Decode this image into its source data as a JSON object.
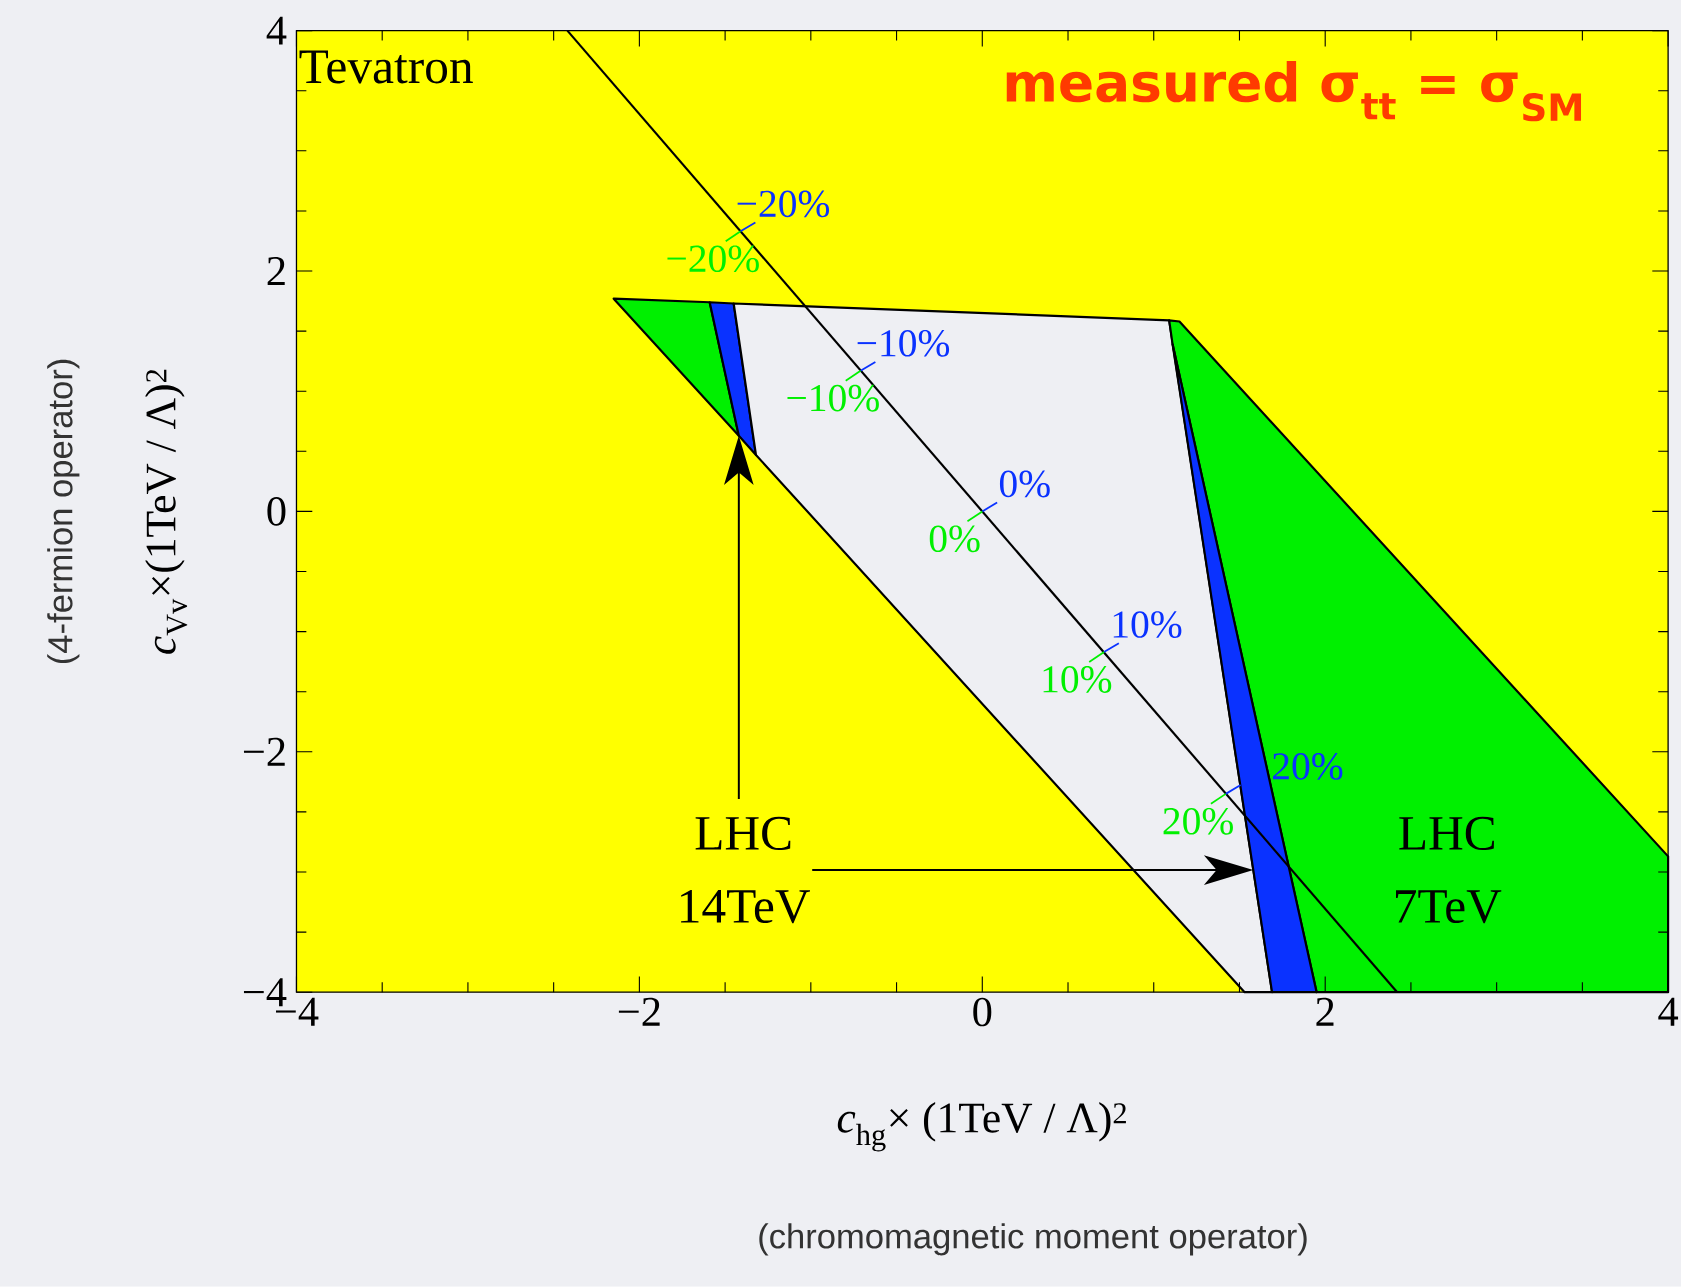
{
  "chart_data": {
    "type": "area",
    "title": "measured σ$_{tt}$ = σ$_{SM}$",
    "xlabel": "*c*$_{hg}$× (1TeV / Λ)$^{2}$",
    "ylabel": "*c*$_{Vv}$×(1TeV / Λ)$^{2}$",
    "xlim": [
      -4,
      4
    ],
    "ylim": [
      -4,
      4
    ],
    "xticks": [
      {
        "value": -4,
        "label": "−4"
      },
      {
        "value": -3.5,
        "label": null
      },
      {
        "value": -3,
        "label": null
      },
      {
        "value": -2.5,
        "label": null
      },
      {
        "value": -2,
        "label": "−2"
      },
      {
        "value": -1.5,
        "label": null
      },
      {
        "value": -1,
        "label": null
      },
      {
        "value": -0.5,
        "label": null
      },
      0,
      {
        "value": 0.5,
        "label": null
      },
      {
        "value": 1,
        "label": null
      },
      {
        "value": 1.5,
        "label": null
      },
      2,
      {
        "value": 2.5,
        "label": null
      },
      {
        "value": 3,
        "label": null
      },
      {
        "value": 3.5,
        "label": null
      },
      4
    ],
    "yticks": [
      {
        "value": -4,
        "label": "−4"
      },
      {
        "value": -3.5,
        "label": null
      },
      {
        "value": -3,
        "label": null
      },
      {
        "value": -2.5,
        "label": null
      },
      {
        "value": -2,
        "label": "−2"
      },
      {
        "value": -1.5,
        "label": null
      },
      {
        "value": -1,
        "label": null
      },
      {
        "value": -0.5,
        "label": null
      },
      0,
      {
        "value": 0.5,
        "label": null
      },
      {
        "value": 1,
        "label": null
      },
      {
        "value": 1.5,
        "label": null
      },
      2,
      {
        "value": 2.5,
        "label": null
      },
      {
        "value": 3,
        "label": null
      },
      {
        "value": 3.5,
        "label": null
      },
      4
    ],
    "bands": [
      {
        "axis": "x",
        "from": -4,
        "to": 4,
        "label": "Tevatron",
        "color": "#ffff00"
      }
    ],
    "series": [
      {
        "color": "#00f000",
        "x": [
          -2.15,
          -1.59,
          -1.42
        ],
        "values": [
          1.77,
          1.74,
          0.63
        ]
      },
      {
        "color": "#0a32ff",
        "x": [
          -1.59,
          -1.45,
          -1.32,
          -1.42
        ],
        "values": [
          1.74,
          1.73,
          0.47,
          0.63
        ]
      },
      {
        "color": "#eeeff3",
        "x": [
          -1.45,
          1.09,
          1.69,
          1.53,
          -1.32
        ],
        "values": [
          1.73,
          1.59,
          -4,
          -4,
          0.47
        ]
      },
      {
        "color": "#00f000",
        "x": [
          1.09,
          1.15,
          4,
          4,
          1.95,
          1.11
        ],
        "values": [
          1.59,
          1.58,
          -2.87,
          -4,
          -4,
          1.39
        ]
      },
      {
        "color": "#0a32ff",
        "x": [
          1.11,
          1.95,
          1.69
        ],
        "values": [
          1.39,
          -4,
          -4
        ]
      },
      {
        "type": "line",
        "color": "#000000",
        "x": [
          -2.42,
          2.42
        ],
        "values": [
          4,
          -4
        ]
      }
    ],
    "annotations": [
      "LHC 14TeV",
      "LHC 7TeV",
      "(4-fermion operator)",
      "(chromomagnetic moment operator)",
      {
        "text": "−20%",
        "x": -1.41,
        "y": 2.33
      },
      {
        "text": "−20%",
        "x": -1.41,
        "y": 2.33
      },
      {
        "text": "−10%",
        "x": -0.71,
        "y": 1.17
      },
      {
        "text": "−10%",
        "x": -0.71,
        "y": 1.17
      },
      {
        "text": "0%",
        "x": 0,
        "y": 0
      },
      {
        "text": "0%",
        "x": 0,
        "y": 0
      },
      {
        "text": "10%",
        "x": 0.71,
        "y": -1.17
      },
      {
        "text": "10%",
        "x": 0.71,
        "y": -1.17
      },
      {
        "text": "20%",
        "x": 1.42,
        "y": -2.35
      },
      {
        "text": "20%",
        "x": 1.42,
        "y": -2.35
      }
    ]
  }
}
